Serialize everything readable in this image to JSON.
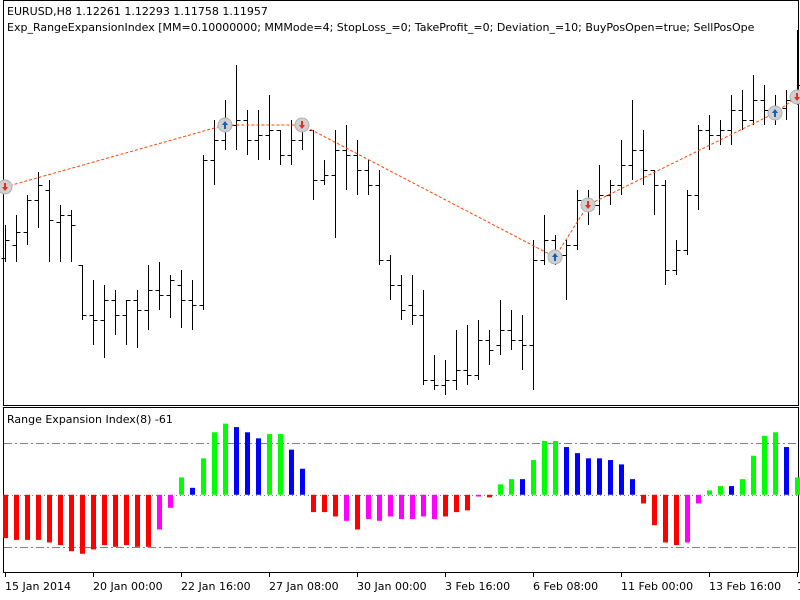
{
  "chart_data": {
    "type": "ohlc",
    "title": "EURUSD,H8  1.12261 1.12293 1.11758 1.11957",
    "subtitle": "Exp_RangeExpansionIndex [MM=0.10000000; MMMode=4; StopLoss_=0; TakeProfit_=0; Deviation_=10; BuyPosOpen=true; SellPosOpe",
    "categories": [
      "15 Jan 2014",
      null,
      null,
      null,
      null,
      null,
      null,
      null,
      "20 Jan 00:00",
      null,
      null,
      null,
      null,
      null,
      null,
      null,
      "22 Jan 16:00",
      null,
      null,
      null,
      null,
      null,
      null,
      null,
      "27 Jan 08:00",
      null,
      null,
      null,
      null,
      null,
      null,
      null,
      "30 Jan 00:00",
      null,
      null,
      null,
      null,
      null,
      null,
      null,
      "3 Feb 16:00",
      null,
      null,
      null,
      null,
      null,
      null,
      null,
      "6 Feb 08:00",
      null,
      null,
      null,
      null,
      null,
      null,
      null,
      "11 Feb 00:00",
      null,
      null,
      null,
      null,
      null,
      null,
      null,
      "13 Feb 16:00",
      null,
      null,
      null,
      null,
      null,
      null,
      null,
      "1"
    ],
    "open": [
      1.3542,
      1.3555,
      1.3568,
      1.36,
      1.361,
      1.3578,
      1.3585,
      1.3535,
      1.3485,
      1.348,
      1.35,
      1.3485,
      1.35,
      1.349,
      1.351,
      1.3505,
      1.3515,
      1.35,
      1.3495,
      1.364,
      1.366,
      1.3675,
      1.368,
      1.366,
      1.3665,
      1.367,
      1.3645,
      1.366,
      1.367,
      1.362,
      1.3625,
      1.365,
      1.3645,
      1.363,
      1.3615,
      1.354,
      1.3515,
      1.3495,
      1.3485,
      1.342,
      1.3415,
      1.342,
      1.343,
      1.3425,
      1.346,
      1.3455,
      1.347,
      1.346,
      1.3455,
      1.354,
      1.356,
      1.3545,
      1.3555,
      1.36,
      1.3595,
      1.3605,
      1.3615,
      1.3635,
      1.365,
      1.363,
      1.3615,
      1.353,
      1.355,
      1.3605,
      1.367,
      1.3665,
      1.367,
      1.369,
      1.368,
      1.37,
      1.369,
      1.3692,
      1.37
    ],
    "high": [
      1.3575,
      1.3585,
      1.3605,
      1.3628,
      1.362,
      1.3595,
      1.359,
      1.3535,
      1.352,
      1.3515,
      1.351,
      1.35,
      1.351,
      1.3535,
      1.3538,
      1.3525,
      1.353,
      1.352,
      1.3645,
      1.368,
      1.37,
      1.3735,
      1.369,
      1.369,
      1.3705,
      1.367,
      1.368,
      1.3672,
      1.367,
      1.364,
      1.367,
      1.3675,
      1.366,
      1.364,
      1.363,
      1.3545,
      1.3525,
      1.3525,
      1.351,
      1.3445,
      1.344,
      1.347,
      1.3475,
      1.348,
      1.347,
      1.35,
      1.349,
      1.3485,
      1.356,
      1.3585,
      1.3565,
      1.356,
      1.361,
      1.361,
      1.3635,
      1.362,
      1.366,
      1.37,
      1.367,
      1.363,
      1.362,
      1.356,
      1.361,
      1.3675,
      1.3685,
      1.368,
      1.3705,
      1.371,
      1.3725,
      1.3715,
      1.3705,
      1.371,
      1.377
    ],
    "low": [
      1.3538,
      1.3538,
      1.3555,
      1.3572,
      1.3538,
      1.3538,
      1.3538,
      1.348,
      1.3455,
      1.3442,
      1.3465,
      1.3455,
      1.3452,
      1.347,
      1.349,
      1.3482,
      1.3472,
      1.347,
      1.349,
      1.3615,
      1.365,
      1.365,
      1.3645,
      1.364,
      1.364,
      1.3635,
      1.3635,
      1.365,
      1.36,
      1.3615,
      1.3562,
      1.361,
      1.3605,
      1.3605,
      1.3535,
      1.35,
      1.348,
      1.3475,
      1.3415,
      1.341,
      1.3405,
      1.341,
      1.3415,
      1.342,
      1.3435,
      1.3445,
      1.345,
      1.343,
      1.341,
      1.3535,
      1.3535,
      1.35,
      1.355,
      1.3575,
      1.3585,
      1.3595,
      1.3605,
      1.362,
      1.3615,
      1.3585,
      1.3515,
      1.3525,
      1.3545,
      1.359,
      1.365,
      1.3655,
      1.3655,
      1.367,
      1.3675,
      1.3675,
      1.3675,
      1.368,
      1.3695
    ],
    "close": [
      1.356,
      1.3568,
      1.36,
      1.3615,
      1.358,
      1.3585,
      1.3575,
      1.3485,
      1.348,
      1.35,
      1.3485,
      1.35,
      1.349,
      1.351,
      1.3505,
      1.352,
      1.35,
      1.3495,
      1.364,
      1.366,
      1.3675,
      1.368,
      1.366,
      1.3665,
      1.367,
      1.3645,
      1.366,
      1.367,
      1.362,
      1.3625,
      1.365,
      1.3645,
      1.363,
      1.3615,
      1.354,
      1.3515,
      1.349,
      1.3485,
      1.342,
      1.3415,
      1.342,
      1.343,
      1.3425,
      1.346,
      1.345,
      1.347,
      1.346,
      1.3455,
      1.354,
      1.356,
      1.3545,
      1.3555,
      1.36,
      1.3595,
      1.3605,
      1.3615,
      1.3635,
      1.365,
      1.363,
      1.3615,
      1.353,
      1.355,
      1.3605,
      1.367,
      1.3665,
      1.367,
      1.369,
      1.368,
      1.37,
      1.369,
      1.3692,
      1.37,
      1.3715
    ],
    "color": "#000000",
    "ylim": [
      1.3395,
      1.378
    ],
    "trades": {
      "x": [
        0,
        20,
        27,
        50,
        53,
        70,
        72
      ],
      "values": [
        1.3613,
        1.3675,
        1.3675,
        1.3543,
        1.3595,
        1.3687,
        1.3703
      ],
      "colors": [
        "#e03020",
        "#1060c0",
        "#e03020",
        "#1060c0",
        "#e03020",
        "#1060c0",
        "#e03020"
      ],
      "line_color": "#ff4500"
    },
    "indicator": {
      "type": "bar",
      "title": "Range Expansion Index(8) -61",
      "values": [
        -50,
        -52,
        -52,
        -52,
        -55,
        -58,
        -65,
        -68,
        -63,
        -58,
        -60,
        -58,
        -60,
        -60,
        -40,
        -15,
        20,
        8,
        42,
        72,
        82,
        78,
        72,
        65,
        70,
        70,
        52,
        30,
        -20,
        -20,
        -25,
        -30,
        -40,
        -28,
        -30,
        -25,
        -28,
        -28,
        -25,
        -28,
        -25,
        -20,
        -18,
        -2,
        -3,
        12,
        18,
        18,
        40,
        62,
        62,
        55,
        48,
        42,
        42,
        40,
        35,
        18,
        -10,
        -35,
        -55,
        -58,
        -55,
        -10,
        5,
        10,
        10,
        18,
        45,
        68,
        72,
        55,
        20
      ],
      "colors": [
        "#ff0000",
        "#ff0000",
        "#ff0000",
        "#ff0000",
        "#ff0000",
        "#ff0000",
        "#ff0000",
        "#ff0000",
        "#ff0000",
        "#ff0000",
        "#ff0000",
        "#ff0000",
        "#ff0000",
        "#ff0000",
        "#ff00ff",
        "#ff00ff",
        "#00ff00",
        "#0000ff",
        "#00ff00",
        "#00ff00",
        "#00ff00",
        "#0000ff",
        "#0000ff",
        "#0000ff",
        "#00ff00",
        "#00ff00",
        "#0000ff",
        "#0000ff",
        "#ff0000",
        "#ff0000",
        "#ff0000",
        "#ff00ff",
        "#ff0000",
        "#ff00ff",
        "#ff00ff",
        "#ff00ff",
        "#ff00ff",
        "#ff00ff",
        "#ff00ff",
        "#ff00ff",
        "#ff0000",
        "#ff0000",
        "#ff0000",
        "#ff00ff",
        "#ff0000",
        "#00ff00",
        "#00ff00",
        "#0000ff",
        "#00ff00",
        "#00ff00",
        "#00ff00",
        "#0000ff",
        "#0000ff",
        "#0000ff",
        "#0000ff",
        "#0000ff",
        "#0000ff",
        "#0000ff",
        "#ff0000",
        "#ff0000",
        "#ff0000",
        "#ff0000",
        "#ff00ff",
        "#ff00ff",
        "#00ff00",
        "#00ff00",
        "#0000ff",
        "#00ff00",
        "#00ff00",
        "#00ff00",
        "#00ff00",
        "#0000ff",
        "#00ff00"
      ],
      "ylim": [
        -89,
        100
      ],
      "levels": [
        60,
        0,
        -60
      ]
    }
  }
}
